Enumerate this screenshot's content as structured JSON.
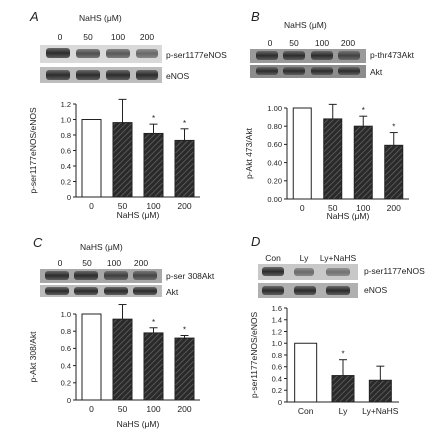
{
  "panels": [
    {
      "letter": "A",
      "header": "NaHS (μM)",
      "lane_labels": [
        "0",
        "50",
        "100",
        "200"
      ],
      "blot_labels": [
        "p-ser1177eNOS",
        "eNOS"
      ]
    },
    {
      "letter": "B",
      "header": "NaHS (μM)",
      "lane_labels": [
        "0",
        "50",
        "100",
        "200"
      ],
      "blot_labels": [
        "p-thr473Akt",
        "Akt"
      ]
    },
    {
      "letter": "C",
      "header": "NaHS (μM)",
      "lane_labels": [
        "0",
        "50",
        "100",
        "200"
      ],
      "blot_labels": [
        "p-ser 308Akt",
        "Akt"
      ]
    },
    {
      "letter": "D",
      "header": "",
      "lane_labels": [
        "Con",
        "Ly",
        "Ly+NaHS"
      ],
      "blot_labels": [
        "p-ser1177eNOS",
        "eNOS"
      ]
    }
  ],
  "chart_data": [
    {
      "type": "bar",
      "panel": "A",
      "categories": [
        "0",
        "50",
        "100",
        "200"
      ],
      "values": [
        1.0,
        0.96,
        0.82,
        0.73
      ],
      "errors": [
        0.0,
        0.3,
        0.12,
        0.15
      ],
      "significant": [
        false,
        false,
        true,
        true
      ],
      "bar_styles": [
        "open",
        "hatched",
        "hatched",
        "hatched"
      ],
      "ylabel": "p-ser1177eNOS/eNOS",
      "xlabel": "NaHS (μM)",
      "ylim": [
        0,
        1.2
      ],
      "yticks": [
        "0",
        "0.2",
        "0.4",
        "0.6",
        "0.8",
        "1.0",
        "1.2"
      ]
    },
    {
      "type": "bar",
      "panel": "B",
      "categories": [
        "0",
        "50",
        "100",
        "200"
      ],
      "values": [
        1.0,
        0.88,
        0.8,
        0.59
      ],
      "errors": [
        0.0,
        0.16,
        0.11,
        0.14
      ],
      "significant": [
        false,
        false,
        true,
        true
      ],
      "bar_styles": [
        "open",
        "hatched",
        "hatched",
        "hatched"
      ],
      "ylabel": "p-Akt 473/Akt",
      "xlabel": "NaHS (μM)",
      "ylim": [
        0,
        1.0
      ],
      "yticks": [
        "0.00",
        "0.20",
        "0.40",
        "0.60",
        "0.80",
        "1.00"
      ]
    },
    {
      "type": "bar",
      "panel": "C",
      "categories": [
        "0",
        "50",
        "100",
        "200"
      ],
      "values": [
        1.0,
        0.94,
        0.78,
        0.72
      ],
      "errors": [
        0.0,
        0.17,
        0.06,
        0.03
      ],
      "significant": [
        false,
        false,
        true,
        true
      ],
      "bar_styles": [
        "open",
        "hatched",
        "hatched",
        "hatched"
      ],
      "ylabel": "p-Akt 308/Akt",
      "xlabel": "NaHS (μM)",
      "ylim": [
        0,
        1.0
      ],
      "yticks": [
        "0",
        "0.2",
        "0.4",
        "0.6",
        "0.8",
        "1.0"
      ]
    },
    {
      "type": "bar",
      "panel": "D",
      "categories": [
        "Con",
        "Ly",
        "Ly+NaHS"
      ],
      "values": [
        1.0,
        0.45,
        0.37
      ],
      "errors": [
        0.0,
        0.27,
        0.24
      ],
      "significant": [
        false,
        true,
        false
      ],
      "bar_styles": [
        "open",
        "hatched",
        "hatched"
      ],
      "ylabel": "p-ser1177eNOS/eNOS",
      "xlabel": "",
      "ylim": [
        0,
        1.6
      ],
      "yticks": [
        "0",
        "0.2",
        "0.4",
        "0.6",
        "0.8",
        "1.0",
        "1.2",
        "1.4",
        "1.6"
      ]
    }
  ],
  "significance_marker": "*"
}
